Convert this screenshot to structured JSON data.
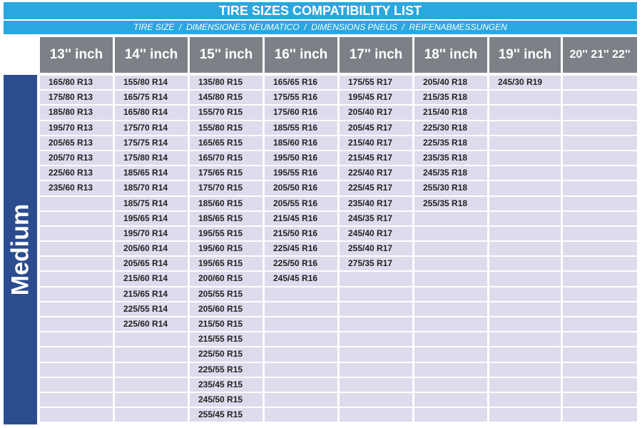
{
  "title": "TIRE SIZES COMPATIBILITY LIST",
  "subtitle": "TIRE SIZE  /  DIMENSIONES NEUMATICO  /  DIMENSIONS PNEUS  /  REIFENABMESSUNGEN",
  "side_label": "Medium",
  "table": {
    "headers": [
      "13'' inch",
      "14'' inch",
      "15'' inch",
      "16'' inch",
      "17'' inch",
      "18'' inch",
      "19'' inch",
      "20'' 21'' 22''"
    ],
    "columns": [
      [
        "165/80 R13",
        "175/80 R13",
        "185/80 R13",
        "195/70 R13",
        "205/65 R13",
        "205/70 R13",
        "225/60 R13",
        "235/60 R13"
      ],
      [
        "155/80 R14",
        "165/75 R14",
        "165/80 R14",
        "175/70 R14",
        "175/75 R14",
        "175/80 R14",
        "185/65 R14",
        "185/70 R14",
        "185/75 R14",
        "195/65 R14",
        "195/70 R14",
        "205/60 R14",
        "205/65 R14",
        "215/60 R14",
        "215/65 R14",
        "225/55 R14",
        "225/60 R14"
      ],
      [
        "135/80 R15",
        "145/80 R15",
        "155/70 R15",
        "155/80 R15",
        "165/65 R15",
        "165/70 R15",
        "175/65 R15",
        "175/70 R15",
        "185/60 R15",
        "185/65 R15",
        "195/55 R15",
        "195/60 R15",
        "195/65 R15",
        "200/60 R15",
        "205/55 R15",
        "205/60 R15",
        "215/50 R15",
        "215/55 R15",
        "225/50 R15",
        "225/55 R15",
        "235/45 R15",
        "245/50 R15",
        "255/45 R15"
      ],
      [
        "165/65 R16",
        "175/55 R16",
        "175/60 R16",
        "185/55 R16",
        "185/60 R16",
        "195/50 R16",
        "195/55 R16",
        "205/50 R16",
        "205/55 R16",
        "215/45 R16",
        "215/50 R16",
        "225/45 R16",
        "225/50 R16",
        "245/45 R16"
      ],
      [
        "175/55 R17",
        "195/45 R17",
        "205/40 R17",
        "205/45 R17",
        "215/40 R17",
        "215/45 R17",
        "225/40 R17",
        "225/45 R17",
        "235/40 R17",
        "245/35 R17",
        "245/40 R17",
        "255/40 R17",
        "275/35 R17"
      ],
      [
        "205/40 R18",
        "215/35 R18",
        "215/40 R18",
        "225/30 R18",
        "225/35 R18",
        "235/35 R18",
        "245/35 R18",
        "255/30 R18",
        "255/35 R18"
      ],
      [
        "245/30 R19"
      ],
      []
    ]
  }
}
